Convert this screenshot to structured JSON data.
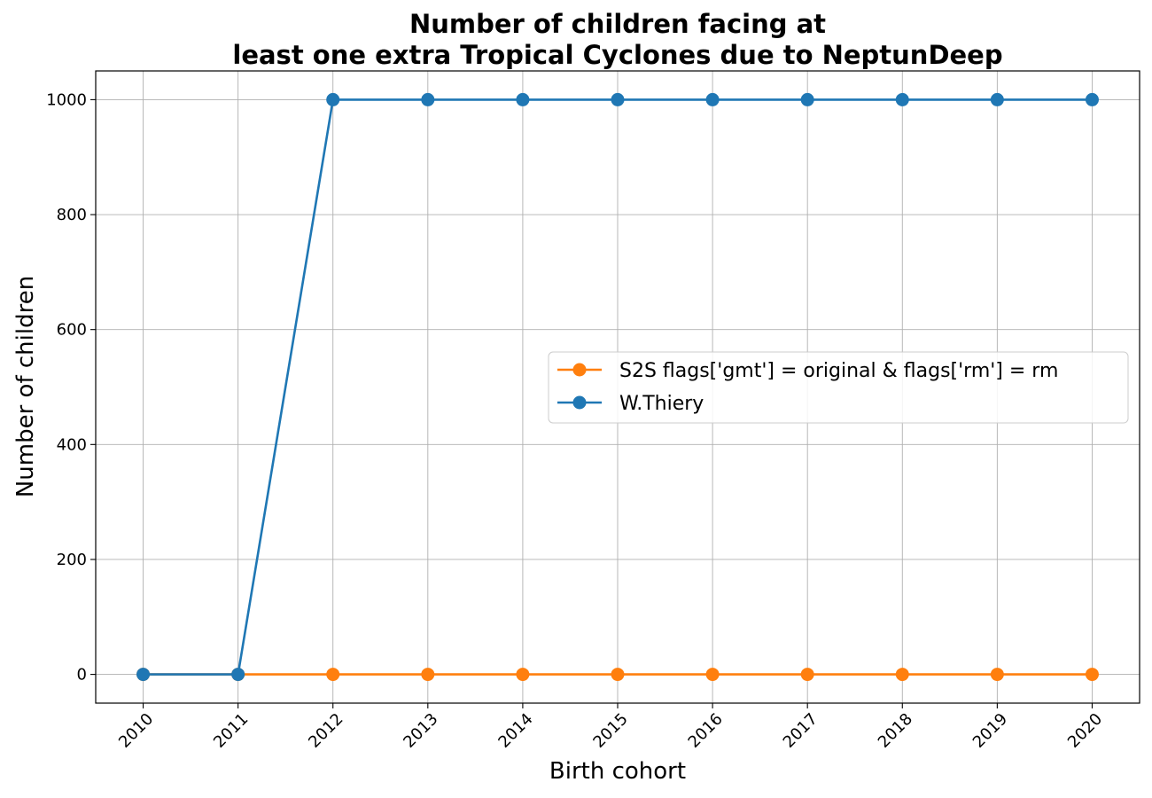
{
  "chart_data": {
    "type": "line",
    "title": "Number of children facing at\nleast one extra Tropical Cyclones due to NeptunDeep",
    "xlabel": "Birth cohort",
    "ylabel": "Number of children",
    "x": [
      2010,
      2011,
      2012,
      2013,
      2014,
      2015,
      2016,
      2017,
      2018,
      2019,
      2020
    ],
    "x_tick_labels": [
      "2010",
      "2011",
      "2012",
      "2013",
      "2014",
      "2015",
      "2016",
      "2017",
      "2018",
      "2019",
      "2020"
    ],
    "y_ticks": [
      0,
      200,
      400,
      600,
      800,
      1000
    ],
    "y_tick_labels": [
      "0",
      "200",
      "400",
      "600",
      "800",
      "1000"
    ],
    "xlim": [
      2009.5,
      2020.5
    ],
    "ylim": [
      -50,
      1050
    ],
    "grid": true,
    "legend_position": "center-right",
    "series": [
      {
        "name": "S2S flags['gmt'] = original & flags['rm'] = rm",
        "color": "#ff7f0e",
        "marker": "circle",
        "values": [
          0,
          0,
          0,
          0,
          0,
          0,
          0,
          0,
          0,
          0,
          0
        ]
      },
      {
        "name": "W.Thiery",
        "color": "#1f77b4",
        "marker": "circle",
        "values": [
          0,
          0,
          1000,
          1000,
          1000,
          1000,
          1000,
          1000,
          1000,
          1000,
          1000
        ]
      }
    ]
  }
}
